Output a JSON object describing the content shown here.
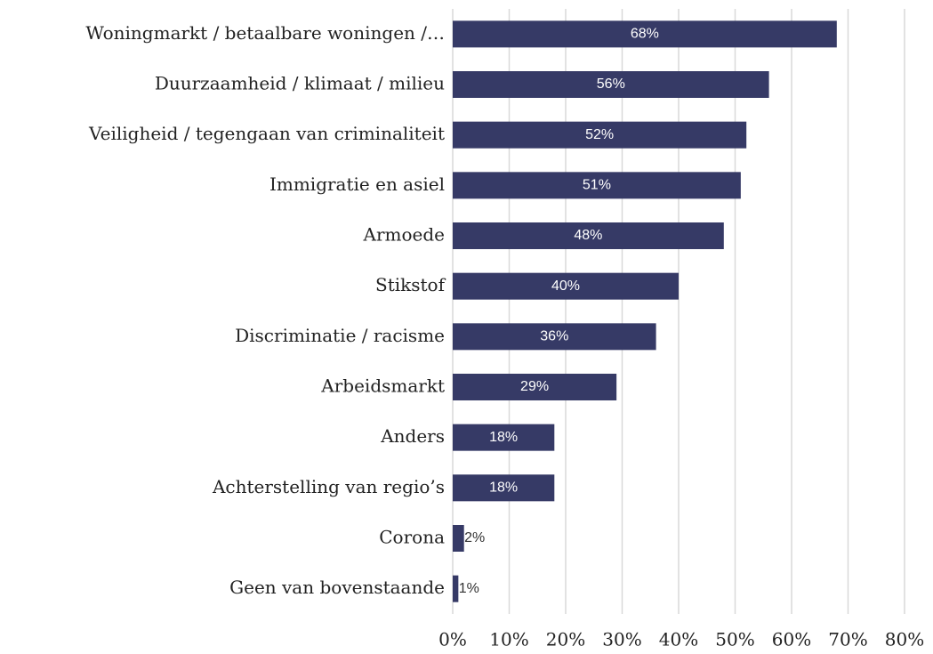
{
  "chart_data": {
    "type": "bar",
    "orientation": "horizontal",
    "categories": [
      "Woningmarkt / betaalbare woningen /…",
      "Duurzaamheid / klimaat / milieu",
      "Veiligheid / tegengaan van criminaliteit",
      "Immigratie en asiel",
      "Armoede",
      "Stikstof",
      "Discriminatie / racisme",
      "Arbeidsmarkt",
      "Anders",
      "Achterstelling van regio’s",
      "Corona",
      "Geen van bovenstaande"
    ],
    "values": [
      68,
      56,
      52,
      51,
      48,
      40,
      36,
      29,
      18,
      18,
      2,
      1
    ],
    "value_labels": [
      "68%",
      "56%",
      "52%",
      "51%",
      "48%",
      "40%",
      "36%",
      "29%",
      "18%",
      "18%",
      "2%",
      "1%"
    ],
    "color": "#363a66",
    "xlim": [
      0,
      80
    ],
    "xticks": [
      {
        "value": 0,
        "label": "0%"
      },
      {
        "value": 10,
        "label": "10%"
      },
      {
        "value": 20,
        "label": "20%"
      },
      {
        "value": 30,
        "label": "30%"
      },
      {
        "value": 40,
        "label": "40%"
      },
      {
        "value": 50,
        "label": "50%"
      },
      {
        "value": 60,
        "label": "60%"
      },
      {
        "value": 70,
        "label": "70%"
      },
      {
        "value": 80,
        "label": "80%"
      }
    ],
    "grid": true
  }
}
